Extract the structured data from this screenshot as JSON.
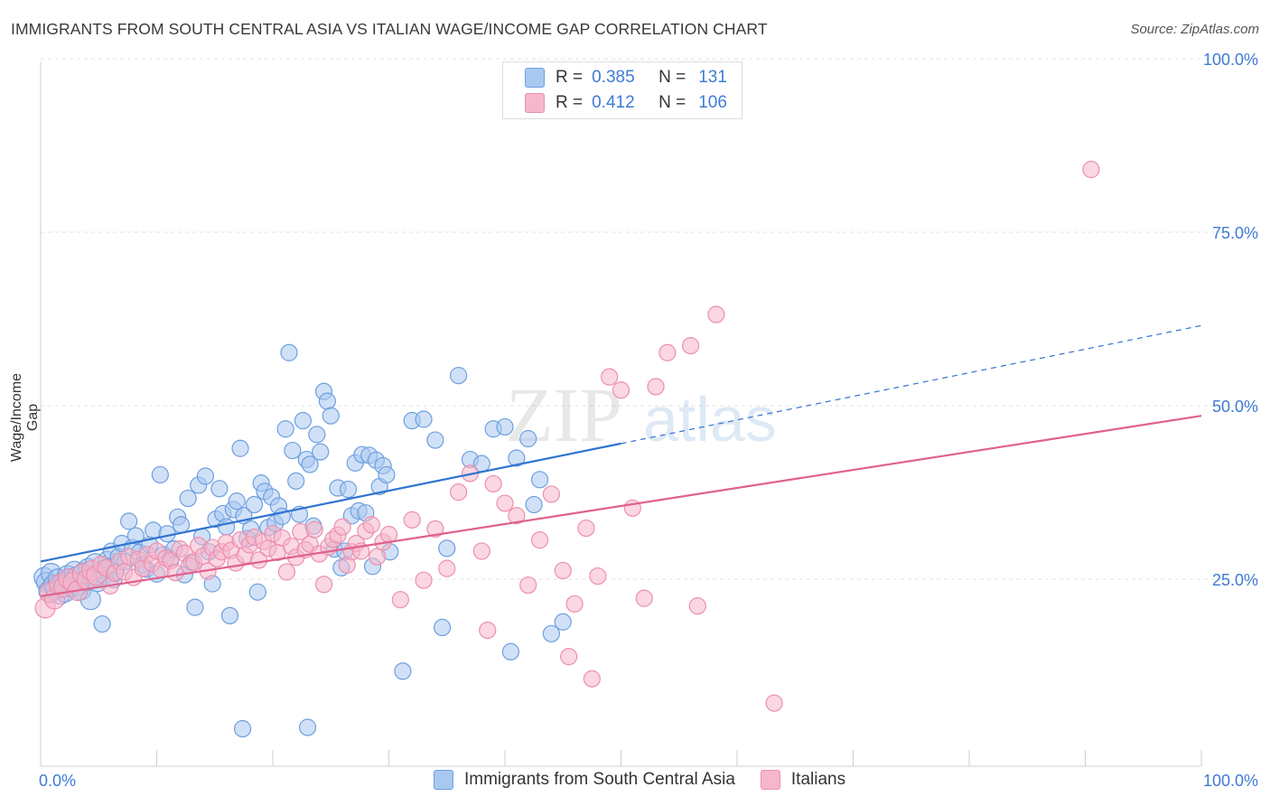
{
  "header": {
    "title": "IMMIGRANTS FROM SOUTH CENTRAL ASIA VS ITALIAN WAGE/INCOME GAP CORRELATION CHART",
    "source": "Source: ZipAtlas.com"
  },
  "watermark": {
    "part1": "ZIP",
    "part2": "atlas"
  },
  "colors": {
    "blue_fill": "#a9c8f0",
    "blue_stroke": "#6d9fe0",
    "blue_line": "#2f74d0",
    "pink_fill": "#f6b7cb",
    "pink_stroke": "#ec8fae",
    "pink_line": "#e0608e",
    "axis_text": "#3f7ad6",
    "grid": "#e2e2e2"
  },
  "legend_top": {
    "rows": [
      {
        "r_label": "R =",
        "r_value": "0.385",
        "n_label": "N =",
        "n_value": "131",
        "swatch_fill": "#a9c8f0",
        "swatch_stroke": "#6d9fe0"
      },
      {
        "r_label": "R =",
        "r_value": "0.412",
        "n_label": "N =",
        "n_value": "106",
        "swatch_fill": "#f6b7cb",
        "swatch_stroke": "#ec8fae"
      }
    ]
  },
  "legend_bottom": {
    "items": [
      {
        "label": "Immigrants from South Central Asia",
        "swatch_fill": "#a9c8f0",
        "swatch_stroke": "#6d9fe0"
      },
      {
        "label": "Italians",
        "swatch_fill": "#f6b7cb",
        "swatch_stroke": "#ec8fae"
      }
    ]
  },
  "chart_data": {
    "type": "scatter",
    "title": "IMMIGRANTS FROM SOUTH CENTRAL ASIA VS ITALIAN WAGE/INCOME GAP CORRELATION CHART",
    "xlabel": "",
    "ylabel": "Wage/Income Gap",
    "xlim": [
      0,
      100
    ],
    "ylim": [
      0,
      100
    ],
    "x_tick_labels": [
      "0.0%",
      "100.0%"
    ],
    "y_tick_labels": [
      "25.0%",
      "50.0%",
      "75.0%",
      "100.0%"
    ],
    "y_ticks": [
      25,
      50,
      75,
      100
    ],
    "grid": true,
    "legend_position": "top-center",
    "series": [
      {
        "name": "Immigrants from South Central Asia",
        "trend": {
          "x": [
            0,
            100
          ],
          "y": [
            29.5,
            63.5
          ],
          "solid_until": 50
        },
        "points": [
          [
            0.3,
            27.2
          ],
          [
            0.5,
            26.5
          ],
          [
            0.7,
            25.2
          ],
          [
            0.9,
            27.8
          ],
          [
            1.1,
            26.1
          ],
          [
            1.3,
            25.5
          ],
          [
            1.5,
            27.0
          ],
          [
            1.7,
            24.8
          ],
          [
            1.9,
            26.4
          ],
          [
            2.1,
            25.1
          ],
          [
            2.3,
            27.5
          ],
          [
            2.5,
            26.8
          ],
          [
            2.7,
            25.9
          ],
          [
            2.9,
            28.1
          ],
          [
            3.1,
            27.3
          ],
          [
            3.3,
            26.0
          ],
          [
            3.5,
            25.4
          ],
          [
            3.7,
            27.9
          ],
          [
            3.9,
            26.7
          ],
          [
            4.1,
            28.5
          ],
          [
            4.3,
            24.0
          ],
          [
            4.5,
            27.1
          ],
          [
            4.7,
            29.2
          ],
          [
            4.9,
            26.6
          ],
          [
            5.1,
            28.2
          ],
          [
            5.3,
            20.5
          ],
          [
            5.5,
            27.4
          ],
          [
            5.7,
            29.8
          ],
          [
            5.9,
            28.8
          ],
          [
            6.1,
            31.0
          ],
          [
            6.3,
            26.9
          ],
          [
            6.5,
            28.0
          ],
          [
            6.7,
            30.2
          ],
          [
            7.0,
            32.1
          ],
          [
            7.3,
            29.5
          ],
          [
            7.6,
            35.3
          ],
          [
            7.9,
            31.5
          ],
          [
            8.2,
            33.2
          ],
          [
            8.5,
            30.8
          ],
          [
            8.8,
            29.0
          ],
          [
            9.1,
            28.4
          ],
          [
            9.4,
            31.9
          ],
          [
            9.7,
            34.0
          ],
          [
            10.0,
            27.7
          ],
          [
            10.3,
            42.0
          ],
          [
            10.6,
            30.5
          ],
          [
            10.9,
            33.5
          ],
          [
            11.2,
            29.9
          ],
          [
            11.5,
            31.3
          ],
          [
            11.8,
            35.9
          ],
          [
            12.1,
            34.8
          ],
          [
            12.4,
            27.6
          ],
          [
            12.7,
            38.6
          ],
          [
            13.0,
            29.4
          ],
          [
            13.3,
            22.9
          ],
          [
            13.6,
            40.5
          ],
          [
            13.9,
            33.1
          ],
          [
            14.2,
            41.8
          ],
          [
            14.5,
            30.9
          ],
          [
            14.8,
            26.3
          ],
          [
            15.1,
            35.6
          ],
          [
            15.4,
            40.0
          ],
          [
            15.7,
            36.4
          ],
          [
            16.0,
            34.5
          ],
          [
            16.3,
            21.7
          ],
          [
            16.6,
            37.0
          ],
          [
            16.9,
            38.2
          ],
          [
            17.2,
            45.8
          ],
          [
            17.5,
            36.1
          ],
          [
            17.8,
            32.8
          ],
          [
            18.1,
            34.2
          ],
          [
            18.4,
            37.7
          ],
          [
            18.7,
            25.1
          ],
          [
            19.0,
            40.8
          ],
          [
            19.3,
            39.6
          ],
          [
            19.6,
            34.4
          ],
          [
            19.9,
            38.8
          ],
          [
            20.2,
            35.0
          ],
          [
            20.5,
            37.5
          ],
          [
            20.8,
            36.0
          ],
          [
            21.1,
            48.6
          ],
          [
            21.4,
            59.6
          ],
          [
            21.7,
            45.5
          ],
          [
            22.0,
            41.1
          ],
          [
            22.3,
            36.3
          ],
          [
            22.6,
            49.8
          ],
          [
            22.9,
            44.2
          ],
          [
            23.2,
            43.5
          ],
          [
            23.5,
            34.6
          ],
          [
            23.8,
            47.8
          ],
          [
            24.1,
            45.3
          ],
          [
            24.4,
            54.0
          ],
          [
            24.7,
            52.6
          ],
          [
            25.0,
            50.5
          ],
          [
            25.3,
            31.3
          ],
          [
            25.6,
            40.1
          ],
          [
            25.9,
            28.6
          ],
          [
            26.2,
            31.0
          ],
          [
            26.5,
            39.9
          ],
          [
            26.8,
            36.1
          ],
          [
            27.1,
            43.7
          ],
          [
            27.4,
            36.8
          ],
          [
            27.7,
            44.9
          ],
          [
            28.0,
            36.5
          ],
          [
            28.3,
            44.8
          ],
          [
            28.6,
            28.8
          ],
          [
            28.9,
            44.1
          ],
          [
            29.2,
            40.3
          ],
          [
            29.5,
            43.3
          ],
          [
            29.8,
            42.0
          ],
          [
            30.1,
            30.9
          ],
          [
            32.0,
            49.8
          ],
          [
            33.0,
            50.0
          ],
          [
            34.0,
            47.0
          ],
          [
            35.0,
            31.4
          ],
          [
            36.0,
            56.3
          ],
          [
            37.0,
            44.2
          ],
          [
            38.0,
            43.6
          ],
          [
            39.0,
            48.6
          ],
          [
            40.0,
            48.9
          ],
          [
            41.0,
            44.4
          ],
          [
            42.0,
            47.2
          ],
          [
            42.5,
            37.7
          ],
          [
            43.0,
            41.3
          ],
          [
            44.0,
            19.1
          ],
          [
            45.0,
            20.8
          ],
          [
            34.6,
            20.0
          ],
          [
            31.2,
            13.7
          ],
          [
            17.4,
            5.4
          ],
          [
            23.0,
            5.6
          ],
          [
            40.5,
            16.5
          ]
        ]
      },
      {
        "name": "Italians",
        "trend": {
          "x": [
            0,
            100
          ],
          "y": [
            24.5,
            50.5
          ]
        },
        "points": [
          [
            0.4,
            22.8
          ],
          [
            0.8,
            25.0
          ],
          [
            1.2,
            24.1
          ],
          [
            1.6,
            26.2
          ],
          [
            2.0,
            25.8
          ],
          [
            2.4,
            27.0
          ],
          [
            2.8,
            26.5
          ],
          [
            3.2,
            25.3
          ],
          [
            3.6,
            27.7
          ],
          [
            4.0,
            26.9
          ],
          [
            4.4,
            28.2
          ],
          [
            4.8,
            27.5
          ],
          [
            5.2,
            29.1
          ],
          [
            5.6,
            28.6
          ],
          [
            6.0,
            26.0
          ],
          [
            6.4,
            27.8
          ],
          [
            6.8,
            29.5
          ],
          [
            7.2,
            28.0
          ],
          [
            7.6,
            30.2
          ],
          [
            8.0,
            27.2
          ],
          [
            8.4,
            29.8
          ],
          [
            8.8,
            28.5
          ],
          [
            9.2,
            30.5
          ],
          [
            9.6,
            29.2
          ],
          [
            10.0,
            31.0
          ],
          [
            10.4,
            28.3
          ],
          [
            10.8,
            30.0
          ],
          [
            11.2,
            29.6
          ],
          [
            11.6,
            27.9
          ],
          [
            12.0,
            31.3
          ],
          [
            12.4,
            30.7
          ],
          [
            12.8,
            28.9
          ],
          [
            13.2,
            29.4
          ],
          [
            13.6,
            31.8
          ],
          [
            14.0,
            30.3
          ],
          [
            14.4,
            28.1
          ],
          [
            14.8,
            31.5
          ],
          [
            15.2,
            29.9
          ],
          [
            15.6,
            30.9
          ],
          [
            16.0,
            32.2
          ],
          [
            16.4,
            31.1
          ],
          [
            16.8,
            29.3
          ],
          [
            17.2,
            32.6
          ],
          [
            17.6,
            30.4
          ],
          [
            18.0,
            31.9
          ],
          [
            18.4,
            33.0
          ],
          [
            18.8,
            29.7
          ],
          [
            19.2,
            32.4
          ],
          [
            19.6,
            31.4
          ],
          [
            20.0,
            33.5
          ],
          [
            20.4,
            30.8
          ],
          [
            20.8,
            32.9
          ],
          [
            21.2,
            28.0
          ],
          [
            21.6,
            31.7
          ],
          [
            22.0,
            30.1
          ],
          [
            22.4,
            33.8
          ],
          [
            22.8,
            31.2
          ],
          [
            23.2,
            32.0
          ],
          [
            23.6,
            34.1
          ],
          [
            24.0,
            30.6
          ],
          [
            24.4,
            26.2
          ],
          [
            24.8,
            31.6
          ],
          [
            25.2,
            32.7
          ],
          [
            25.6,
            33.3
          ],
          [
            26.0,
            34.5
          ],
          [
            26.4,
            29.0
          ],
          [
            26.8,
            30.9
          ],
          [
            27.2,
            32.1
          ],
          [
            27.6,
            31.0
          ],
          [
            28.0,
            33.9
          ],
          [
            28.5,
            34.8
          ],
          [
            29.0,
            30.2
          ],
          [
            29.5,
            32.3
          ],
          [
            30.0,
            33.4
          ],
          [
            31.0,
            24.0
          ],
          [
            32.0,
            35.5
          ],
          [
            33.0,
            26.8
          ],
          [
            34.0,
            34.2
          ],
          [
            35.0,
            28.5
          ],
          [
            36.0,
            39.5
          ],
          [
            37.0,
            42.2
          ],
          [
            38.0,
            31.0
          ],
          [
            38.5,
            19.6
          ],
          [
            39.0,
            40.7
          ],
          [
            40.0,
            37.9
          ],
          [
            41.0,
            36.1
          ],
          [
            42.0,
            26.1
          ],
          [
            43.0,
            32.6
          ],
          [
            44.0,
            39.2
          ],
          [
            45.0,
            28.2
          ],
          [
            46.0,
            23.4
          ],
          [
            47.0,
            34.3
          ],
          [
            48.0,
            27.4
          ],
          [
            49.0,
            56.1
          ],
          [
            50.0,
            54.2
          ],
          [
            51.0,
            37.2
          ],
          [
            52.0,
            24.2
          ],
          [
            53.0,
            54.7
          ],
          [
            54.0,
            59.6
          ],
          [
            56.0,
            60.6
          ],
          [
            90.5,
            86.0
          ],
          [
            45.5,
            15.8
          ],
          [
            47.5,
            12.6
          ],
          [
            56.6,
            23.1
          ],
          [
            58.2,
            65.1
          ],
          [
            63.2,
            9.1
          ]
        ]
      }
    ]
  }
}
